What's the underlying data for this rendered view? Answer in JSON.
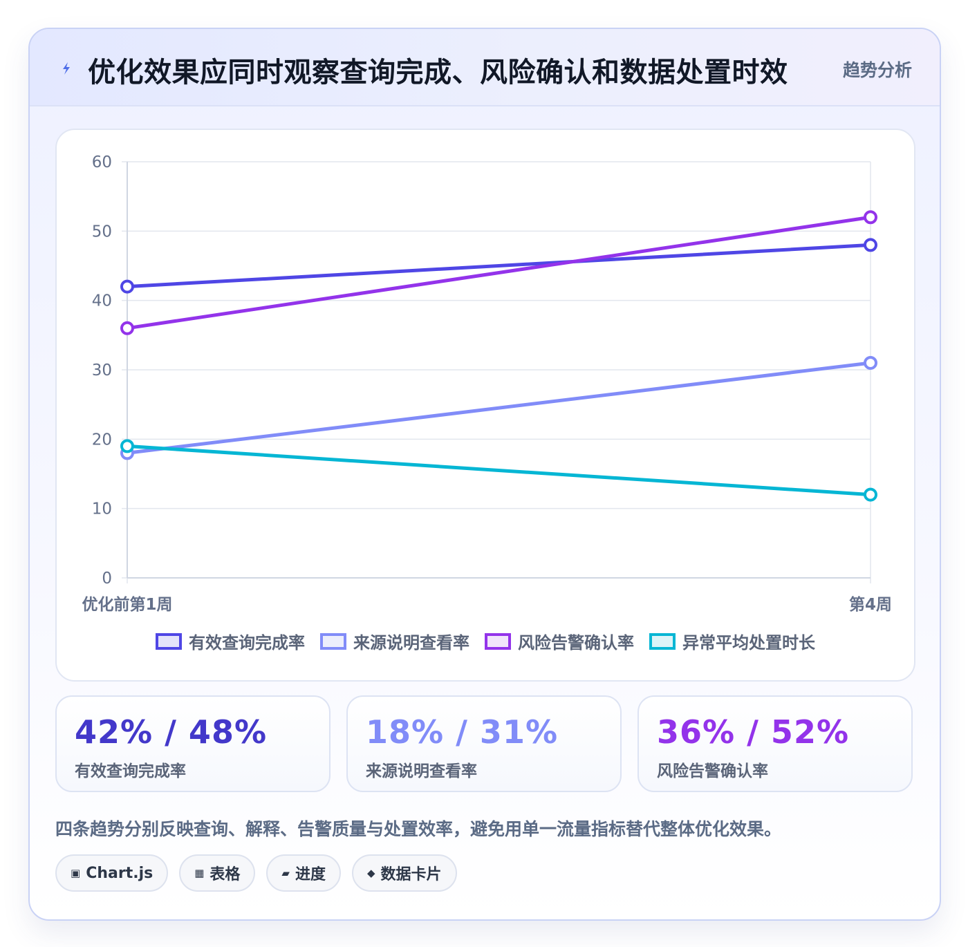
{
  "header": {
    "title": "优化效果应同时观察查询完成、风险确认和数据处置时效",
    "badge": "趋势分析",
    "icon": "lightning-icon"
  },
  "chart_data": {
    "type": "line",
    "categories": [
      "优化前第1周",
      "第4周"
    ],
    "ylim": [
      0,
      60
    ],
    "yticks": [
      0,
      10,
      20,
      30,
      40,
      50,
      60
    ],
    "grid": true,
    "legend_position": "bottom",
    "series": [
      {
        "name": "有效查询完成率",
        "values": [
          42,
          48
        ],
        "color": "#4f46e5",
        "fill": "#e4e3fa"
      },
      {
        "name": "来源说明查看率",
        "values": [
          18,
          31
        ],
        "color": "#818cf8",
        "fill": "#eceefc"
      },
      {
        "name": "风险告警确认率",
        "values": [
          36,
          52
        ],
        "color": "#9333ea",
        "fill": "#f1e4fb"
      },
      {
        "name": "异常平均处置时长",
        "values": [
          19,
          12
        ],
        "color": "#06b6d4",
        "fill": "#dcf4f8"
      }
    ]
  },
  "stats": [
    {
      "value": "42% / 48%",
      "label": "有效查询完成率",
      "color": "#4338ca"
    },
    {
      "value": "18% / 31%",
      "label": "来源说明查看率",
      "color": "#818cf8"
    },
    {
      "value": "36% / 52%",
      "label": "风险告警确认率",
      "color": "#9333ea"
    }
  ],
  "note": "四条趋势分别反映查询、解释、告警质量与处置效率，避免用单一流量指标替代整体优化效果。",
  "tags": [
    {
      "icon": "▣",
      "label": "Chart.js"
    },
    {
      "icon": "▦",
      "label": "表格"
    },
    {
      "icon": "▰",
      "label": "进度"
    },
    {
      "icon": "◆",
      "label": "数据卡片"
    }
  ]
}
